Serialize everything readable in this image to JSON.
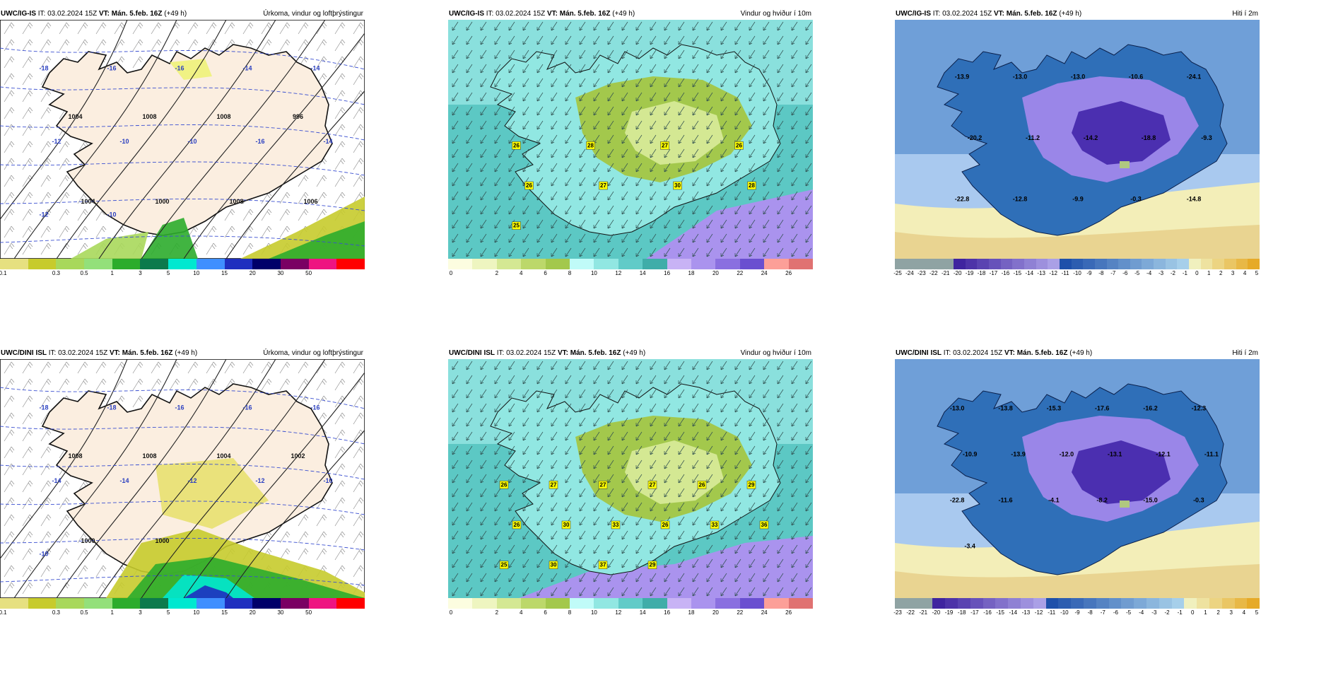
{
  "rows": [
    {
      "model": "UWC/IG-IS",
      "it": "IT: 03.02.2024 15Z",
      "vt_label": "VT:",
      "vt": "Mán. 5.feb. 16Z",
      "lead": "(+49 h)",
      "temp_labels": [
        "-13.9",
        "-13.0",
        "-13.0",
        "-10.6",
        "-24.1",
        "-20.2",
        "-11.2",
        "-14.2",
        "-18.8",
        "-9.3",
        "-22.8",
        "-12.8",
        "-9.9",
        "-0.3",
        "-14.8"
      ],
      "wind_badges": [
        "26",
        "28",
        "27",
        "26",
        "26",
        "27",
        "30",
        "28",
        "25"
      ],
      "isobars": [
        "1004",
        "1008",
        "1008",
        "996",
        "1004",
        "1000",
        "1008",
        "1006"
      ],
      "isotherms": [
        "-18",
        "-16",
        "-16",
        "-14",
        "-14",
        "-12",
        "-10",
        "-10",
        "-16",
        "-14",
        "-12",
        "-10"
      ]
    },
    {
      "model": "UWC/DINI ISL",
      "it": "IT: 03.02.2024 15Z",
      "vt_label": "VT:",
      "vt": "Mán. 5.feb. 16Z",
      "lead": "(+49 h)",
      "temp_labels": [
        "-13.0",
        "-13.8",
        "-15.3",
        "-17.6",
        "-16.2",
        "-12.3",
        "-10.9",
        "-13.9",
        "-12.0",
        "-13.1",
        "-12.1",
        "-11.1",
        "-22.8",
        "-11.6",
        "-4.1",
        "-8.2",
        "-15.0",
        "-0.3",
        "-3.4"
      ],
      "wind_badges": [
        "26",
        "27",
        "27",
        "27",
        "26",
        "29",
        "26",
        "30",
        "33",
        "26",
        "33",
        "36",
        "25",
        "30",
        "37",
        "29"
      ],
      "isobars": [
        "1008",
        "1008",
        "1004",
        "1002",
        "1000",
        "1000"
      ],
      "isotherms": [
        "-18",
        "-18",
        "-16",
        "-16",
        "-16",
        "-14",
        "-14",
        "-12",
        "-12",
        "-10",
        "-10"
      ]
    }
  ],
  "panel_titles": {
    "precip": "Úrkoma, vindur og loftþrýstingur",
    "wind": "Vindur og hviður í 10m",
    "temp": "Hiti í 2m"
  },
  "precip_legend": {
    "colors": [
      "#e6e080",
      "#c7cb2c",
      "#a8d85b",
      "#93e07a",
      "#2cac2c",
      "#0c7a4c",
      "#00e8d0",
      "#3f8fff",
      "#1f2fbf",
      "#00006a",
      "#7a0063",
      "#ee1481",
      "#ff0000"
    ],
    "ticks": [
      "0.1",
      "0.3",
      "0.5",
      "1",
      "3",
      "5",
      "10",
      "15",
      "20",
      "30",
      "50"
    ]
  },
  "wind_legend": {
    "colors": [
      "#fcfde0",
      "#eef5c0",
      "#d4e893",
      "#bcd86a",
      "#a3c84c",
      "#c0fbf8",
      "#91e7e2",
      "#61cbc8",
      "#3fada9",
      "#c8b3f5",
      "#aa93ee",
      "#8a6fe0",
      "#6a4fd0",
      "#fc9f98",
      "#e07272"
    ],
    "ticks": [
      "0",
      "2",
      "4",
      "6",
      "8",
      "10",
      "12",
      "14",
      "16",
      "18",
      "20",
      "22",
      "24",
      "26"
    ]
  },
  "temp_legend_1": {
    "ticks": [
      "-25",
      "-24",
      "-23",
      "-22",
      "-21",
      "-20",
      "-19",
      "-18",
      "-17",
      "-16",
      "-15",
      "-14",
      "-13",
      "-12",
      "-11",
      "-10",
      "-9",
      "-8",
      "-7",
      "-6",
      "-5",
      "-4",
      "-3",
      "-2",
      "-1",
      "0",
      "1",
      "2",
      "3",
      "4",
      "5"
    ]
  },
  "temp_legend_2": {
    "ticks": [
      "-23",
      "-22",
      "-21",
      "-20",
      "-19",
      "-18",
      "-17",
      "-16",
      "-15",
      "-14",
      "-13",
      "-12",
      "-11",
      "-10",
      "-9",
      "-8",
      "-7",
      "-6",
      "-5",
      "-4",
      "-3",
      "-2",
      "-1",
      "0",
      "1",
      "2",
      "3",
      "4",
      "5"
    ]
  }
}
